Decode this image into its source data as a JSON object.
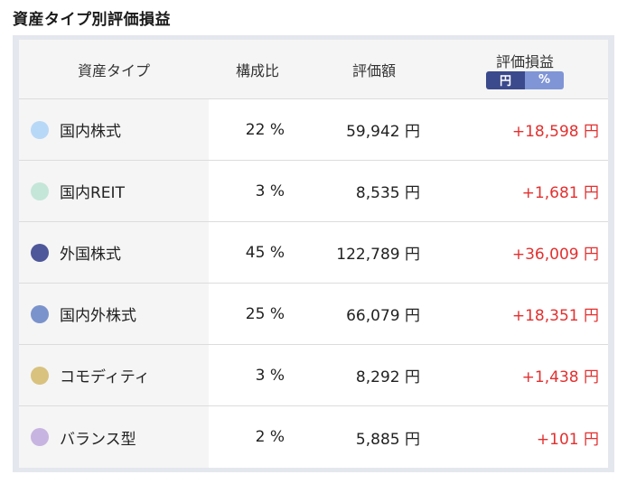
{
  "page_title": "資産タイプ別評価損益",
  "headers": {
    "type": "資産タイプ",
    "ratio": "構成比",
    "value": "評価額",
    "profit": "評価損益",
    "toggle_yen": "円",
    "toggle_pct": "%"
  },
  "colors": {
    "profit_positive": "#e2302f",
    "toggle_active": "#3a4a8c",
    "toggle_inactive": "#7f95d6"
  },
  "rows": [
    {
      "name": "国内株式",
      "ratio": "22 %",
      "value": "59,942 円",
      "profit": "+18,598 円",
      "color": "#b8d8f8"
    },
    {
      "name": "国内REIT",
      "ratio": "3 %",
      "value": "8,535 円",
      "profit": "+1,681 円",
      "color": "#c4e6d9"
    },
    {
      "name": "外国株式",
      "ratio": "45 %",
      "value": "122,789 円",
      "profit": "+36,009 円",
      "color": "#4e5799"
    },
    {
      "name": "国内外株式",
      "ratio": "25 %",
      "value": "66,079 円",
      "profit": "+18,351 円",
      "color": "#7b93cc"
    },
    {
      "name": "コモディティ",
      "ratio": "3 %",
      "value": "8,292 円",
      "profit": "+1,438 円",
      "color": "#d8c27e"
    },
    {
      "name": "バランス型",
      "ratio": "2 %",
      "value": "5,885 円",
      "profit": "+101 円",
      "color": "#c8b4e0"
    }
  ]
}
